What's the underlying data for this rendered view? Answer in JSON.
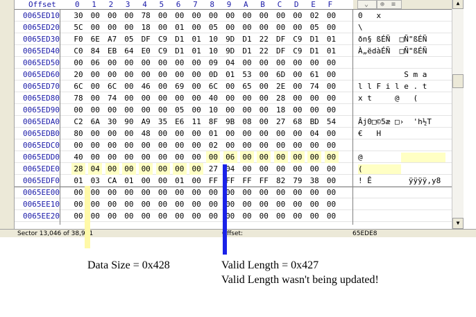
{
  "header": {
    "offset_label": "Offset",
    "columns": [
      "0",
      "1",
      "2",
      "3",
      "4",
      "5",
      "6",
      "7",
      "8",
      "9",
      "A",
      "B",
      "C",
      "D",
      "E",
      "F"
    ]
  },
  "rows": [
    {
      "offset": "0065ED10",
      "hex": [
        "30",
        "00",
        "00",
        "00",
        "78",
        "00",
        "00",
        "00",
        "00",
        "00",
        "00",
        "00",
        "00",
        "00",
        "02",
        "00"
      ],
      "ascii": "0   x"
    },
    {
      "offset": "0065ED20",
      "hex": [
        "5C",
        "00",
        "00",
        "00",
        "18",
        "00",
        "01",
        "00",
        "05",
        "00",
        "00",
        "00",
        "00",
        "00",
        "05",
        "00"
      ],
      "ascii": "\\"
    },
    {
      "offset": "0065ED30",
      "hex": [
        "F0",
        "6E",
        "A7",
        "05",
        "DF",
        "C9",
        "D1",
        "01",
        "10",
        "9D",
        "D1",
        "22",
        "DF",
        "C9",
        "D1",
        "01"
      ],
      "ascii": "ðn§ ßÉÑ  □Ñ\"ßÉÑ"
    },
    {
      "offset": "0065ED40",
      "hex": [
        "C0",
        "84",
        "EB",
        "64",
        "E0",
        "C9",
        "D1",
        "01",
        "10",
        "9D",
        "D1",
        "22",
        "DF",
        "C9",
        "D1",
        "01"
      ],
      "ascii": "À„ëdàÉÑ  □Ñ\"ßÉÑ"
    },
    {
      "offset": "0065ED50",
      "hex": [
        "00",
        "06",
        "00",
        "00",
        "00",
        "00",
        "00",
        "00",
        "09",
        "04",
        "00",
        "00",
        "00",
        "00",
        "00",
        "00"
      ],
      "ascii": ""
    },
    {
      "offset": "0065ED60",
      "hex": [
        "20",
        "00",
        "00",
        "00",
        "00",
        "00",
        "00",
        "00",
        "0D",
        "01",
        "53",
        "00",
        "6D",
        "00",
        "61",
        "00"
      ],
      "ascii": "          S m a"
    },
    {
      "offset": "0065ED70",
      "hex": [
        "6C",
        "00",
        "6C",
        "00",
        "46",
        "00",
        "69",
        "00",
        "6C",
        "00",
        "65",
        "00",
        "2E",
        "00",
        "74",
        "00"
      ],
      "ascii": "l l F i l e . t"
    },
    {
      "offset": "0065ED80",
      "hex": [
        "78",
        "00",
        "74",
        "00",
        "00",
        "00",
        "00",
        "00",
        "40",
        "00",
        "00",
        "00",
        "28",
        "00",
        "00",
        "00"
      ],
      "ascii": "x t     @   ("
    },
    {
      "offset": "0065ED90",
      "hex": [
        "00",
        "00",
        "00",
        "00",
        "00",
        "00",
        "05",
        "00",
        "10",
        "00",
        "00",
        "00",
        "18",
        "00",
        "00",
        "00"
      ],
      "ascii": ""
    },
    {
      "offset": "0065EDA0",
      "hex": [
        "C2",
        "6A",
        "30",
        "90",
        "A9",
        "35",
        "E6",
        "11",
        "8F",
        "9B",
        "08",
        "00",
        "27",
        "68",
        "BD",
        "54"
      ],
      "ascii": "Âj0□©5æ □›  'h½T"
    },
    {
      "offset": "0065EDB0",
      "hex": [
        "80",
        "00",
        "00",
        "00",
        "48",
        "00",
        "00",
        "00",
        "01",
        "00",
        "00",
        "00",
        "00",
        "00",
        "04",
        "00"
      ],
      "ascii": "€   H"
    },
    {
      "offset": "0065EDC0",
      "hex": [
        "00",
        "00",
        "00",
        "00",
        "00",
        "00",
        "00",
        "00",
        "02",
        "00",
        "00",
        "00",
        "00",
        "00",
        "00",
        "00"
      ],
      "ascii": ""
    },
    {
      "offset": "0065EDD0",
      "hex": [
        "40",
        "00",
        "00",
        "00",
        "00",
        "00",
        "00",
        "00",
        "00",
        "06",
        "00",
        "00",
        "00",
        "00",
        "00",
        "00"
      ],
      "ascii": "@"
    },
    {
      "offset": "0065EDE0",
      "hex": [
        "28",
        "04",
        "00",
        "00",
        "00",
        "00",
        "00",
        "00",
        "27",
        "04",
        "00",
        "00",
        "00",
        "00",
        "00",
        "00"
      ],
      "ascii": "("
    },
    {
      "offset": "0065EDF0",
      "hex": [
        "01",
        "03",
        "CA",
        "01",
        "00",
        "00",
        "01",
        "00",
        "FF",
        "FF",
        "FF",
        "FF",
        "82",
        "79",
        "38",
        "00"
      ],
      "ascii": "! Ê        ÿÿÿÿ‚y8"
    },
    {
      "offset": "0065EE00",
      "hex": [
        "00",
        "00",
        "00",
        "00",
        "00",
        "00",
        "00",
        "00",
        "00",
        "00",
        "00",
        "00",
        "00",
        "00",
        "00",
        "00"
      ],
      "ascii": ""
    },
    {
      "offset": "0065EE10",
      "hex": [
        "00",
        "00",
        "00",
        "00",
        "00",
        "00",
        "00",
        "00",
        "00",
        "00",
        "00",
        "00",
        "00",
        "00",
        "00",
        "00"
      ],
      "ascii": ""
    },
    {
      "offset": "0065EE20",
      "hex": [
        "00",
        "00",
        "00",
        "00",
        "00",
        "00",
        "00",
        "00",
        "00",
        "00",
        "00",
        "00",
        "00",
        "00",
        "00",
        "00"
      ],
      "ascii": ""
    }
  ],
  "status": {
    "sector": "Sector 13,046 of 38,911",
    "offset_label": "Offset:",
    "offset_value": "65EDE8"
  },
  "annotations": {
    "data_size": "Data Size = 0x428",
    "valid_length": "Valid Length = 0x427",
    "note": "Valid Length wasn't being updated!"
  },
  "colors": {
    "offset_text": "#1a1aa8",
    "highlight": "#ffffc4",
    "marker_yellow": "#fff9a8",
    "marker_blue": "#1a22e8"
  }
}
